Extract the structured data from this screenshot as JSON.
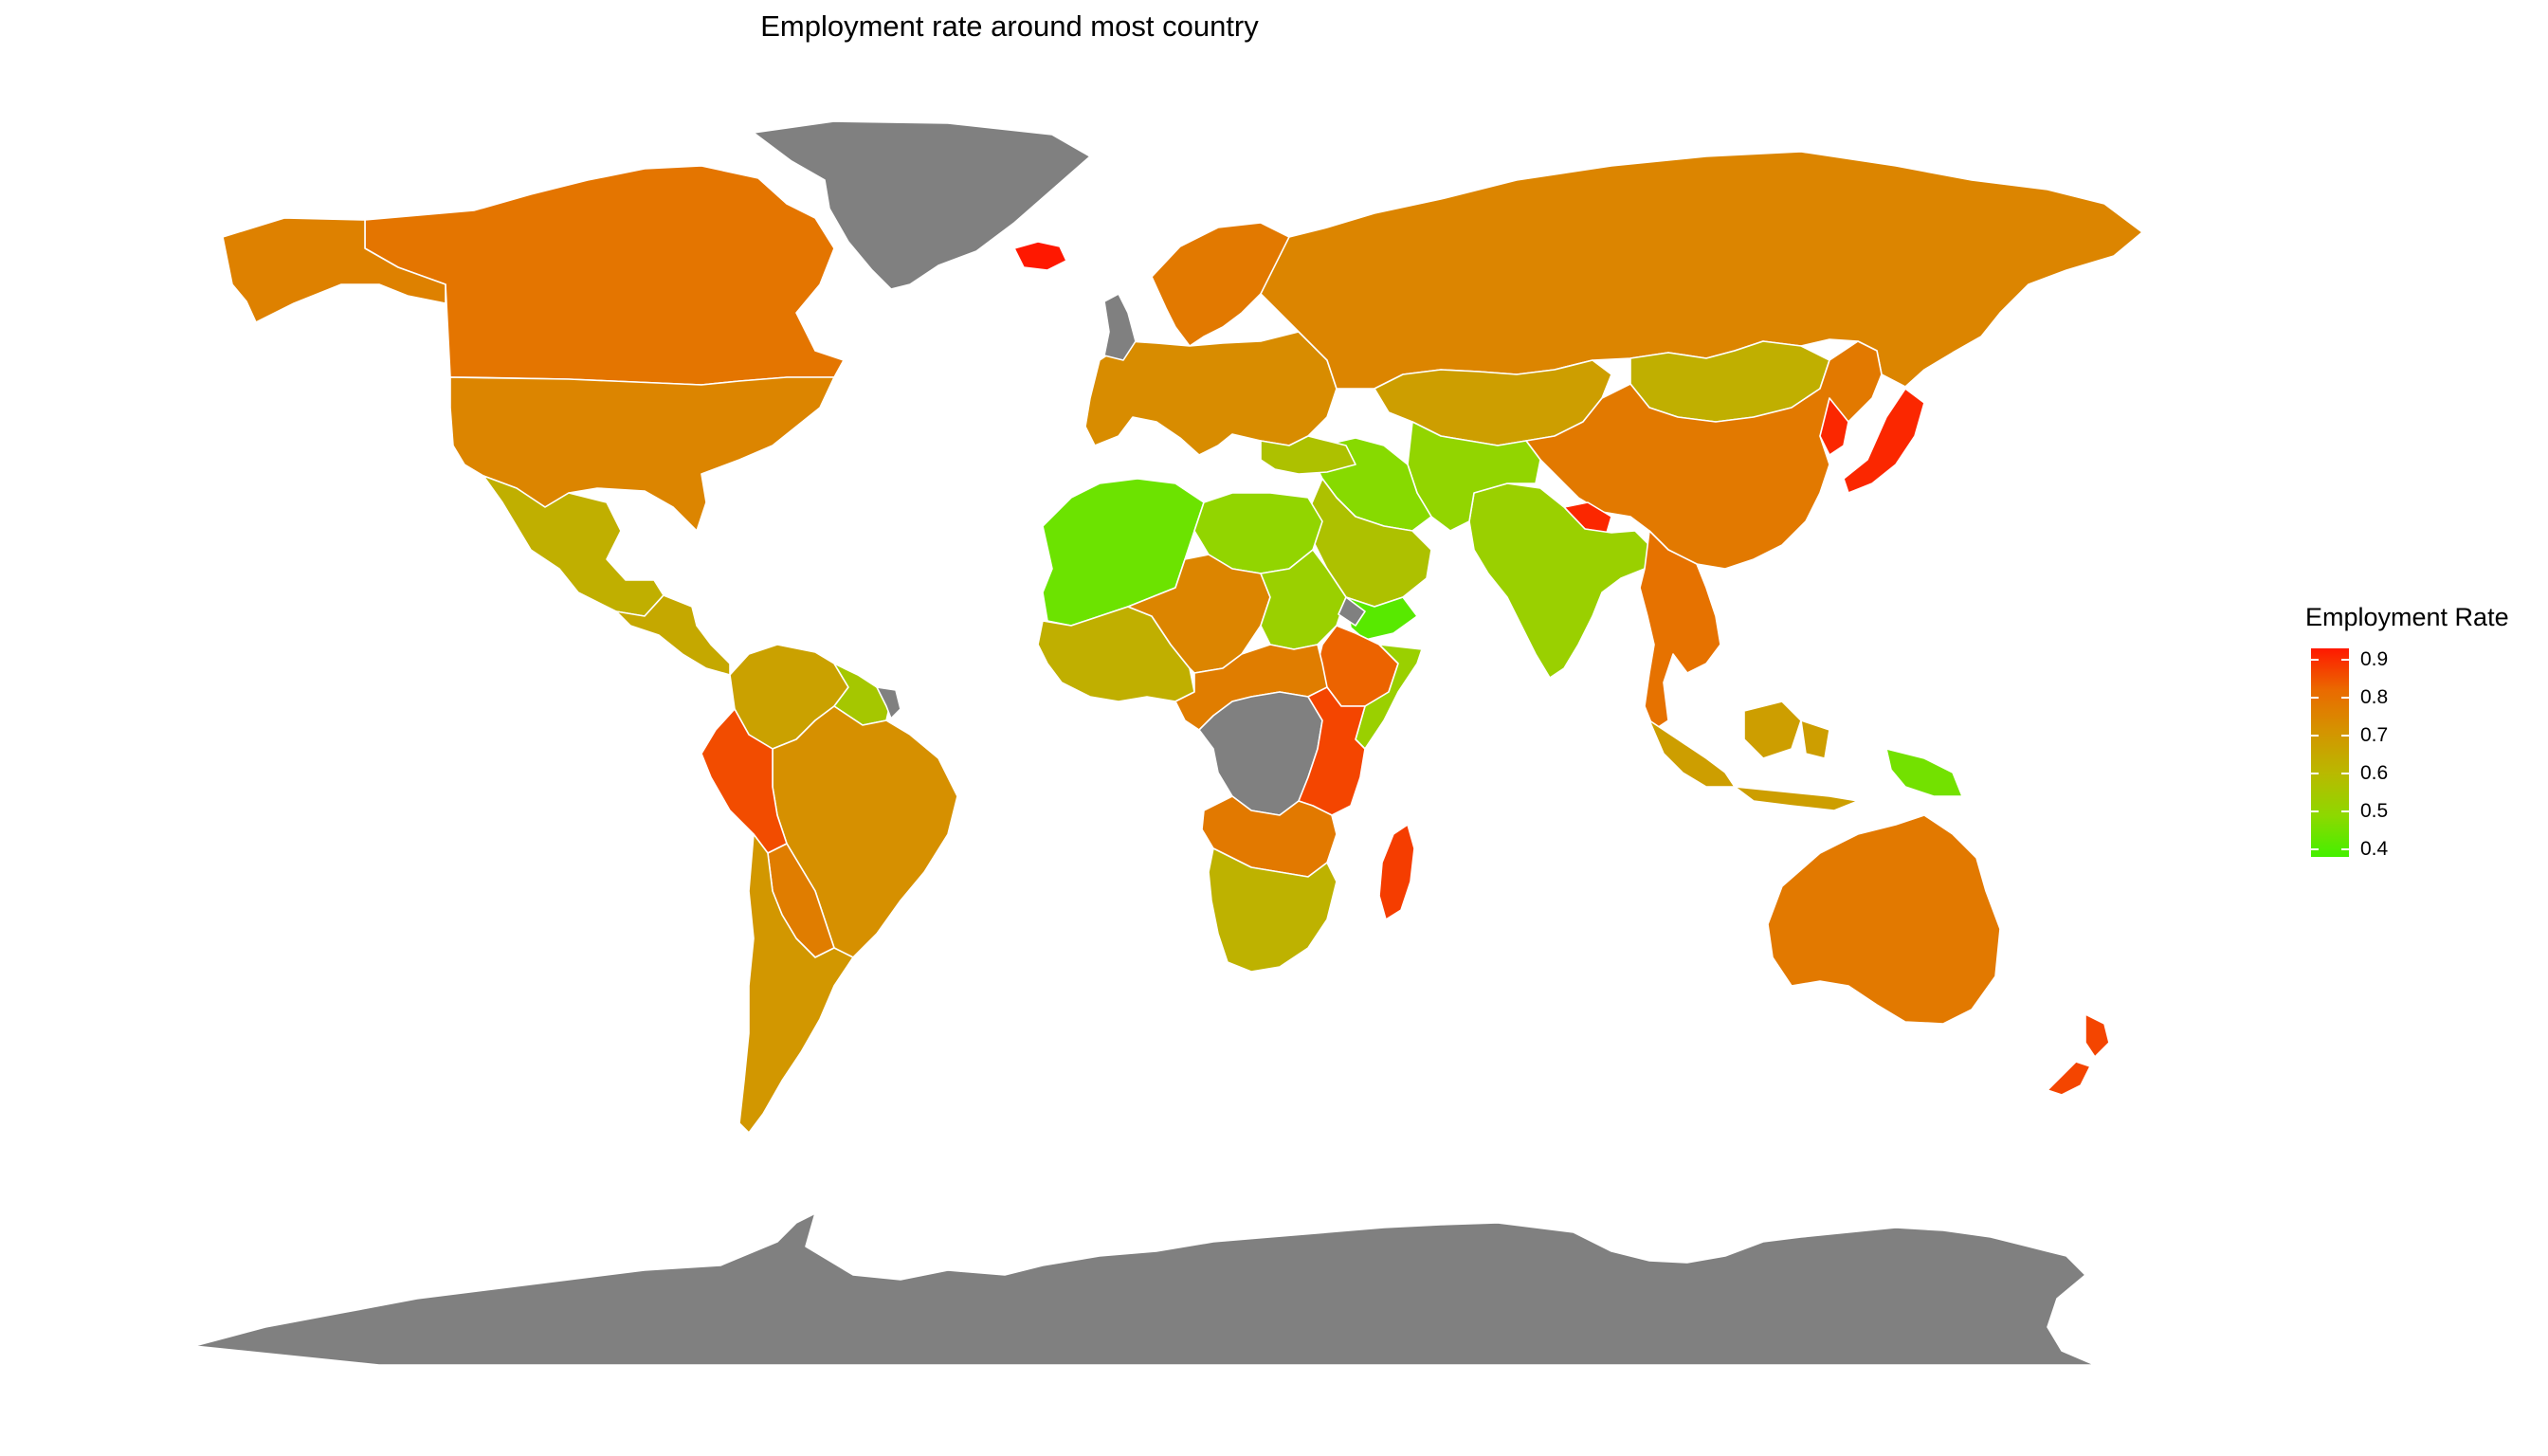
{
  "title": "Employment rate around most country",
  "legend": {
    "title": "Employment Rate",
    "ticks": [
      "0.9",
      "0.8",
      "0.7",
      "0.6",
      "0.5",
      "0.4"
    ],
    "tick_values": [
      0.9,
      0.8,
      0.7,
      0.6,
      0.5,
      0.4
    ],
    "range": [
      0.38,
      0.93
    ],
    "gradient": [
      "#ff1800",
      "#ea6a00",
      "#d49400",
      "#b9b900",
      "#8ed800",
      "#44f000"
    ]
  },
  "colors": {
    "missing": "#808080",
    "border": "#ffffff",
    "background": "#ffffff"
  },
  "regions": [
    {
      "name": "Greenland",
      "value": null
    },
    {
      "name": "Canada",
      "value": 0.79
    },
    {
      "name": "Alaska",
      "value": 0.76
    },
    {
      "name": "United States",
      "value": 0.75
    },
    {
      "name": "Mexico",
      "value": 0.63
    },
    {
      "name": "Central America",
      "value": 0.65
    },
    {
      "name": "Colombia & Venezuela",
      "value": 0.67
    },
    {
      "name": "Guyana & Suriname",
      "value": 0.55
    },
    {
      "name": "French Guiana",
      "value": null
    },
    {
      "name": "Brazil",
      "value": 0.72
    },
    {
      "name": "Peru",
      "value": 0.86
    },
    {
      "name": "Bolivia & Paraguay",
      "value": 0.77
    },
    {
      "name": "Argentina & Chile",
      "value": 0.7
    },
    {
      "name": "Iceland",
      "value": 0.93
    },
    {
      "name": "Scandinavia",
      "value": 0.78
    },
    {
      "name": "Europe",
      "value": 0.73
    },
    {
      "name": "United Kingdom",
      "value": null
    },
    {
      "name": "Russia",
      "value": 0.75
    },
    {
      "name": "Kazakhstan & Central Asia",
      "value": 0.68
    },
    {
      "name": "Mongolia",
      "value": 0.63
    },
    {
      "name": "China",
      "value": 0.78
    },
    {
      "name": "Korea & Japan",
      "value": 0.91
    },
    {
      "name": "Nepal",
      "value": 0.91
    },
    {
      "name": "India",
      "value": 0.52
    },
    {
      "name": "Pakistan & Afghanistan",
      "value": 0.5
    },
    {
      "name": "Middle East",
      "value": 0.48
    },
    {
      "name": "Saudi Arabia",
      "value": 0.57
    },
    {
      "name": "Yemen",
      "value": 0.41
    },
    {
      "name": "Turkey",
      "value": 0.57
    },
    {
      "name": "Southeast Asia",
      "value": 0.8
    },
    {
      "name": "Indonesia",
      "value": 0.68
    },
    {
      "name": "Papua New Guinea",
      "value": 0.45
    },
    {
      "name": "Australia",
      "value": 0.78
    },
    {
      "name": "New Zealand",
      "value": 0.87
    },
    {
      "name": "Northwest Africa",
      "value": 0.44
    },
    {
      "name": "Libya & Egypt",
      "value": 0.5
    },
    {
      "name": "West Africa",
      "value": 0.63
    },
    {
      "name": "Sahel",
      "value": 0.75
    },
    {
      "name": "Sudan",
      "value": 0.52
    },
    {
      "name": "Ethiopia",
      "value": 0.83
    },
    {
      "name": "Somalia",
      "value": 0.52
    },
    {
      "name": "Central Africa",
      "value": 0.77
    },
    {
      "name": "DR Congo",
      "value": null
    },
    {
      "name": "Eritrea",
      "value": null
    },
    {
      "name": "Tanzania & Kenya",
      "value": 0.87
    },
    {
      "name": "Angola & Zambia",
      "value": 0.78
    },
    {
      "name": "Southern Africa",
      "value": 0.62
    },
    {
      "name": "Madagascar",
      "value": 0.88
    },
    {
      "name": "Antarctica",
      "value": null
    }
  ]
}
